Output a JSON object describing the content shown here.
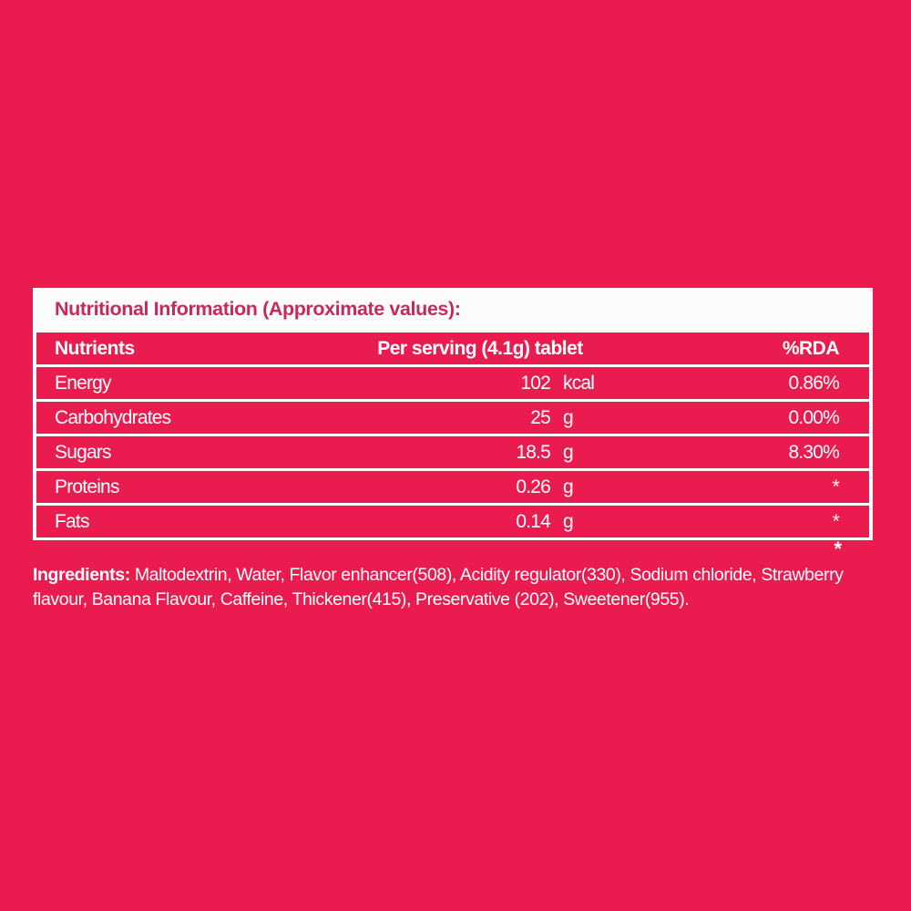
{
  "colors": {
    "background": "#EA1B4F",
    "row_red": "#EA1B4F",
    "panel_white": "#FCFCFC",
    "title_pink": "#C62A5C",
    "text_white": "#FFFFFF"
  },
  "title": "Nutritional Information (Approximate values):",
  "table": {
    "headers": {
      "nutrient": "Nutrients",
      "per_serving": "Per serving (4.1g) tablet",
      "rda": "%RDA"
    },
    "rows": [
      {
        "nutrient": "Energy",
        "value": "102",
        "unit": "kcal",
        "rda": "0.86%"
      },
      {
        "nutrient": "Carbohydrates",
        "value": "25",
        "unit": "g",
        "rda": "0.00%"
      },
      {
        "nutrient": "Sugars",
        "value": "18.5",
        "unit": "g",
        "rda": "8.30%"
      },
      {
        "nutrient": "Proteins",
        "value": "0.26",
        "unit": "g",
        "rda": "*"
      },
      {
        "nutrient": "Fats",
        "value": "0.14",
        "unit": "g",
        "rda": "*"
      }
    ]
  },
  "footnote_marker": "*",
  "ingredients": {
    "label": "Ingredients:",
    "text": " Maltodextrin, Water, Flavor enhancer(508), Acidity regulator(330), Sodium chloride, Strawberry flavour, Banana Flavour, Caffeine, Thickener(415), Preservative (202), Sweetener(955)."
  }
}
